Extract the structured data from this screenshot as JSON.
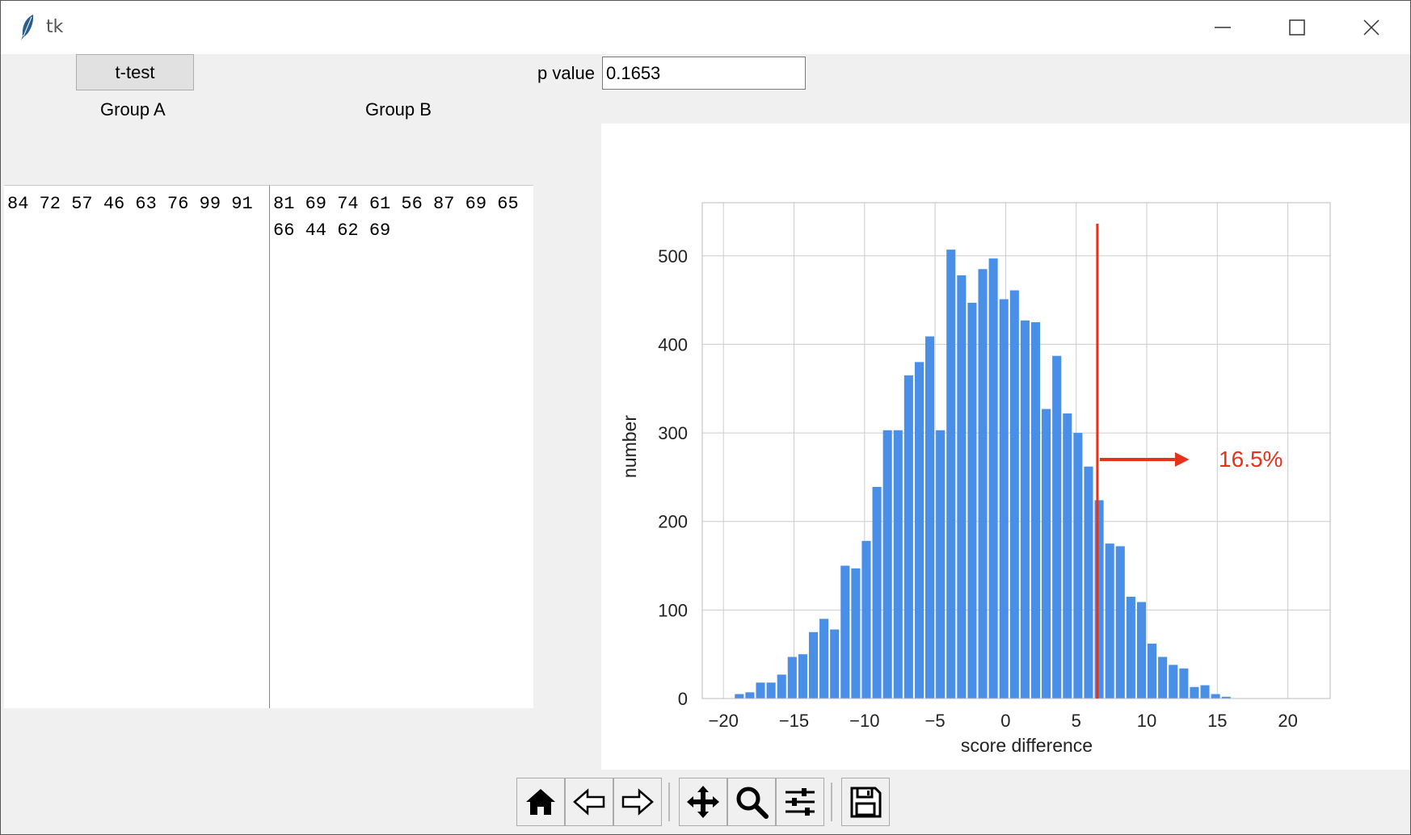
{
  "window": {
    "title": "tk",
    "controls": [
      "minimize-icon",
      "maximize-icon",
      "close-icon"
    ]
  },
  "toolbar_top": {
    "ttest_label": "t-test",
    "pvalue_label": "p value",
    "pvalue_value": "0.1653"
  },
  "groups": {
    "a_label": "Group A",
    "b_label": "Group B",
    "a_text": "84 72 57 46 63 76 99 91",
    "b_text": "81 69 74 61 56 87 69 65 66 44 62 69"
  },
  "chart_data": {
    "type": "bar",
    "xlabel": "score difference",
    "ylabel": "number",
    "xlim": [
      -21.5,
      23
    ],
    "ylim": [
      0,
      560
    ],
    "xticks": [
      -20,
      -15,
      -10,
      -5,
      0,
      5,
      10,
      15,
      20
    ],
    "xtick_labels": [
      "−20",
      "−15",
      "−10",
      "−5",
      "0",
      "5",
      "10",
      "15",
      "20"
    ],
    "yticks": [
      0,
      100,
      200,
      300,
      400,
      500
    ],
    "ytick_labels": [
      "0",
      "100",
      "200",
      "300",
      "400",
      "500"
    ],
    "grid": true,
    "bin_width": 0.75,
    "bins_start": -20.0,
    "values": [
      0,
      5,
      7,
      18,
      18,
      27,
      47,
      50,
      75,
      90,
      78,
      150,
      147,
      178,
      239,
      303,
      303,
      365,
      380,
      409,
      303,
      507,
      478,
      447,
      485,
      497,
      451,
      461,
      427,
      425,
      327,
      387,
      322,
      300,
      262,
      224,
      175,
      172,
      115,
      109,
      62,
      47,
      38,
      34,
      13,
      15,
      5,
      2
    ],
    "bar_color": "#4a8fe7",
    "marker": {
      "x": 6.5,
      "color": "#e8311b"
    },
    "annotation": {
      "text": "16.5%",
      "color": "#e8311b"
    }
  }
}
